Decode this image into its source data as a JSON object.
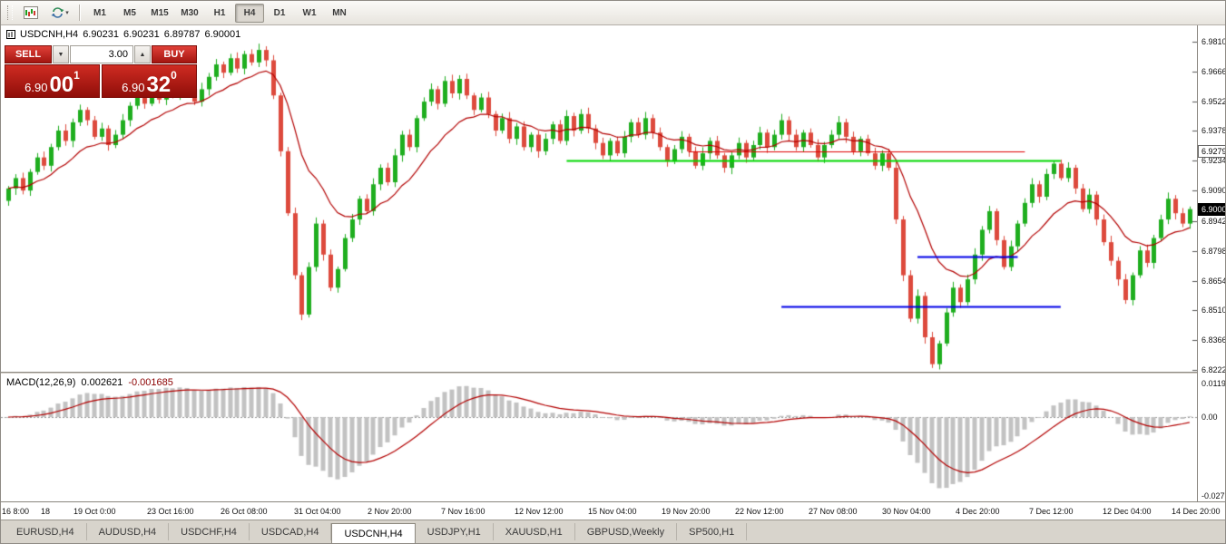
{
  "toolbar": {
    "timeframes": [
      {
        "label": "M1",
        "active": false
      },
      {
        "label": "M5",
        "active": false
      },
      {
        "label": "M15",
        "active": false
      },
      {
        "label": "M30",
        "active": false
      },
      {
        "label": "H1",
        "active": false
      },
      {
        "label": "H4",
        "active": true
      },
      {
        "label": "D1",
        "active": false
      },
      {
        "label": "W1",
        "active": false
      },
      {
        "label": "MN",
        "active": false
      }
    ]
  },
  "chart_header": {
    "symbol": "USDCNH,H4",
    "open": "6.90231",
    "high": "6.90231",
    "low": "6.89787",
    "close": "6.90001"
  },
  "trade_panel": {
    "sell_label": "SELL",
    "buy_label": "BUY",
    "volume": "3.00",
    "sell_price": {
      "big": "6.90",
      "pips": "00",
      "sup": "1"
    },
    "buy_price": {
      "big": "6.90",
      "pips": "32",
      "sup": "0"
    }
  },
  "price_axis": {
    "ticks": [
      "6.98100",
      "6.96660",
      "6.95220",
      "6.93780",
      "6.92340",
      "6.90900",
      "6.89420",
      "6.87980",
      "6.86540",
      "6.85100",
      "6.83660",
      "6.82220"
    ],
    "line_label": "6.92794",
    "current_price": "6.90001"
  },
  "macd_panel": {
    "name": "MACD(12,26,9)",
    "value_main": "0.002621",
    "value_signal": "-0.001685",
    "axis_top": "0.0119",
    "axis_zero": "0.00",
    "axis_bottom": "-0.0277754"
  },
  "time_axis": {
    "labels": [
      "16 8:00",
      "18",
      "19 Oct 0:00",
      "23 Oct 16:00",
      "26 Oct 08:00",
      "31 Oct 04:00",
      "2 Nov 20:00",
      "7 Nov 16:00",
      "12 Nov 12:00",
      "15 Nov 04:00",
      "19 Nov 20:00",
      "22 Nov 12:00",
      "27 Nov 08:00",
      "30 Nov 04:00",
      "4 Dec 20:00",
      "7 Dec 12:00",
      "12 Dec 04:00",
      "14 Dec 20:00"
    ]
  },
  "tabs": [
    {
      "label": "EURUSD,H4",
      "active": false
    },
    {
      "label": "AUDUSD,H4",
      "active": false
    },
    {
      "label": "USDCHF,H4",
      "active": false
    },
    {
      "label": "USDCAD,H4",
      "active": false
    },
    {
      "label": "USDCNH,H4",
      "active": true
    },
    {
      "label": "USDJPY,H1",
      "active": false
    },
    {
      "label": "XAUUSD,H1",
      "active": false
    },
    {
      "label": "GBPUSD,Weekly",
      "active": false
    },
    {
      "label": "SP500,H1",
      "active": false
    }
  ],
  "chart_data": {
    "type": "candlestick",
    "symbol": "USDCNH",
    "timeframe": "H4",
    "time_range": {
      "start": "16 Oct 8:00",
      "end": "14 Dec 20:00"
    },
    "ohlc_current": {
      "open": 6.90231,
      "high": 6.90231,
      "low": 6.89787,
      "close": 6.90001
    },
    "y_axis": {
      "min": 6.8222,
      "max": 6.981
    },
    "closes": [
      6.91,
      6.915,
      6.909,
      6.918,
      6.925,
      6.921,
      6.93,
      6.938,
      6.933,
      6.942,
      6.948,
      6.943,
      6.935,
      6.939,
      6.931,
      6.936,
      6.943,
      6.95,
      6.956,
      6.951,
      6.958,
      6.953,
      6.96,
      6.955,
      6.962,
      6.958,
      6.952,
      6.958,
      6.964,
      6.97,
      6.966,
      6.973,
      6.968,
      6.975,
      6.971,
      6.977,
      6.972,
      6.955,
      6.928,
      6.898,
      6.868,
      6.849,
      6.872,
      6.893,
      6.878,
      6.862,
      6.871,
      6.886,
      6.895,
      6.905,
      6.899,
      6.912,
      6.92,
      6.913,
      6.926,
      6.936,
      6.93,
      6.944,
      6.952,
      6.958,
      6.951,
      6.962,
      6.956,
      6.963,
      6.955,
      6.948,
      6.954,
      6.946,
      6.938,
      6.944,
      6.934,
      6.94,
      6.93,
      6.936,
      6.928,
      6.934,
      6.941,
      6.933,
      6.945,
      6.938,
      6.946,
      6.939,
      6.932,
      6.926,
      6.933,
      6.927,
      6.935,
      6.942,
      6.936,
      6.944,
      6.937,
      6.93,
      6.923,
      6.929,
      6.935,
      6.928,
      6.921,
      6.927,
      6.933,
      6.926,
      6.92,
      6.926,
      6.932,
      6.925,
      6.931,
      6.937,
      6.93,
      6.936,
      6.943,
      6.936,
      6.93,
      6.937,
      6.931,
      6.925,
      6.931,
      6.936,
      6.942,
      6.935,
      6.928,
      6.934,
      6.927,
      6.921,
      6.927,
      6.92,
      6.895,
      6.868,
      6.847,
      6.858,
      6.838,
      6.825,
      6.835,
      6.85,
      6.862,
      6.855,
      6.866,
      6.878,
      6.89,
      6.899,
      6.885,
      6.872,
      6.882,
      6.893,
      6.903,
      6.912,
      6.906,
      6.917,
      6.922,
      6.915,
      6.92,
      6.91,
      6.9,
      6.907,
      6.895,
      6.884,
      6.875,
      6.866,
      6.856,
      6.868,
      6.88,
      6.874,
      6.886,
      6.895,
      6.905,
      6.898,
      6.893,
      6.9
    ],
    "ma_period": 13,
    "overlay_lines": [
      {
        "type": "horizontal-segment",
        "color": "#e00000",
        "price": 6.92794,
        "from_bar": 95,
        "to_bar": 142,
        "width": 1
      },
      {
        "type": "horizontal-segment",
        "color": "#00d800",
        "price": 6.9234,
        "from_bar": 78,
        "to_bar": 147,
        "width": 2
      },
      {
        "type": "horizontal-segment",
        "color": "#0000e8",
        "price": 6.877,
        "from_bar": 127,
        "to_bar": 141,
        "width": 2
      },
      {
        "type": "horizontal-segment",
        "color": "#0000e8",
        "price": 6.853,
        "from_bar": 108,
        "to_bar": 147,
        "width": 2
      }
    ],
    "macd": {
      "fast": 12,
      "slow": 26,
      "signal": 9,
      "scale_top": 0.0119,
      "scale_bottom": -0.0277754
    },
    "colors": {
      "up": "#1fae1f",
      "down": "#dd4a3d",
      "ma": "#b30000",
      "macd_hist": "#c2c2c2",
      "macd_signal": "#b30000"
    }
  }
}
